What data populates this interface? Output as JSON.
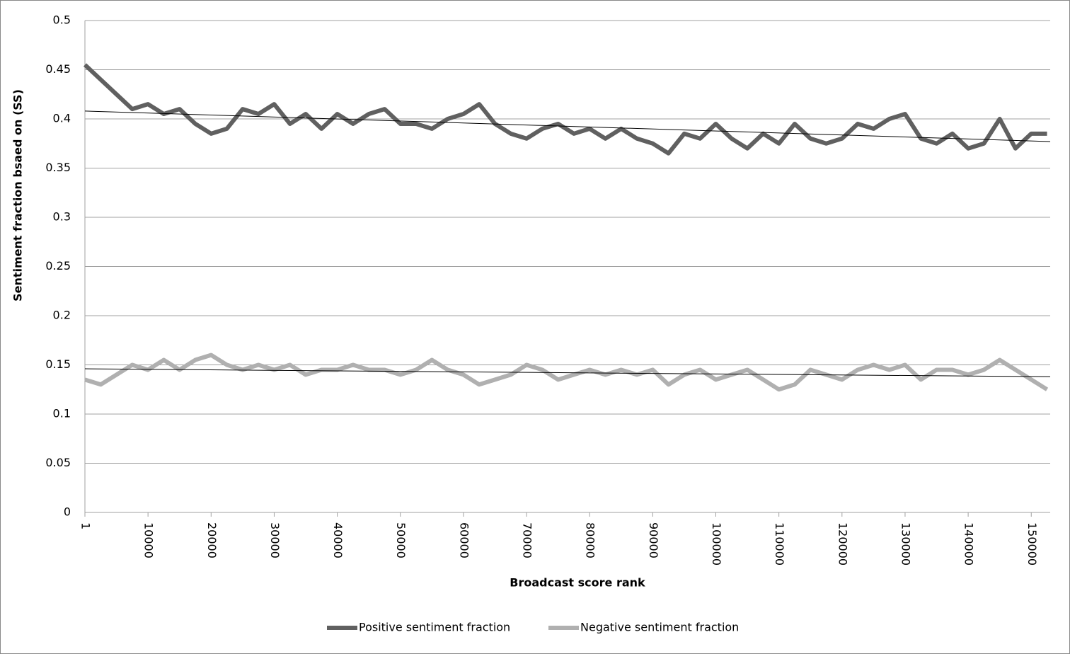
{
  "chart_data": {
    "type": "line",
    "y_label": "Sentiment fraction bsaed on (SS)",
    "x_label": "Broadcast score rank",
    "x": [
      1,
      2500,
      5000,
      7500,
      10000,
      12500,
      15000,
      17500,
      20000,
      22500,
      25000,
      27500,
      30000,
      32500,
      35000,
      37500,
      40000,
      42500,
      45000,
      47500,
      50000,
      52500,
      55000,
      57500,
      60000,
      62500,
      65000,
      67500,
      70000,
      72500,
      75000,
      77500,
      80000,
      82500,
      85000,
      87500,
      90000,
      92500,
      95000,
      97500,
      100000,
      102500,
      105000,
      107500,
      110000,
      112500,
      115000,
      117500,
      120000,
      122500,
      125000,
      127500,
      130000,
      132500,
      135000,
      137500,
      140000,
      142500,
      145000,
      147500,
      150000,
      152500
    ],
    "series": [
      {
        "name": "Positive sentiment fraction",
        "color": "#606060",
        "values": [
          0.455,
          0.44,
          0.425,
          0.41,
          0.415,
          0.405,
          0.41,
          0.395,
          0.385,
          0.39,
          0.41,
          0.405,
          0.415,
          0.395,
          0.405,
          0.39,
          0.405,
          0.395,
          0.405,
          0.41,
          0.395,
          0.395,
          0.39,
          0.4,
          0.405,
          0.415,
          0.395,
          0.385,
          0.38,
          0.39,
          0.395,
          0.385,
          0.39,
          0.38,
          0.39,
          0.38,
          0.375,
          0.365,
          0.385,
          0.38,
          0.395,
          0.38,
          0.37,
          0.385,
          0.375,
          0.395,
          0.38,
          0.375,
          0.38,
          0.395,
          0.39,
          0.4,
          0.405,
          0.38,
          0.375,
          0.385,
          0.37,
          0.375,
          0.4,
          0.37,
          0.385,
          0.385
        ]
      },
      {
        "name": "Negative sentiment fraction",
        "color": "#b0b0b0",
        "values": [
          0.135,
          0.13,
          0.14,
          0.15,
          0.145,
          0.155,
          0.145,
          0.155,
          0.16,
          0.15,
          0.145,
          0.15,
          0.145,
          0.15,
          0.14,
          0.145,
          0.145,
          0.15,
          0.145,
          0.145,
          0.14,
          0.145,
          0.155,
          0.145,
          0.14,
          0.13,
          0.135,
          0.14,
          0.15,
          0.145,
          0.135,
          0.14,
          0.145,
          0.14,
          0.145,
          0.14,
          0.145,
          0.13,
          0.14,
          0.145,
          0.135,
          0.14,
          0.145,
          0.135,
          0.125,
          0.13,
          0.145,
          0.14,
          0.135,
          0.145,
          0.15,
          0.145,
          0.15,
          0.135,
          0.145,
          0.145,
          0.14,
          0.145,
          0.155,
          0.145,
          0.135,
          0.125
        ]
      }
    ],
    "trendlines": [
      {
        "x": [
          1,
          153000
        ],
        "values": [
          0.408,
          0.377
        ],
        "color": "#000000"
      },
      {
        "x": [
          1,
          153000
        ],
        "values": [
          0.146,
          0.138
        ],
        "color": "#000000"
      }
    ],
    "xlim": [
      1,
      153000
    ],
    "ylim": [
      0,
      0.5
    ],
    "xticks": [
      1,
      10000,
      20000,
      30000,
      40000,
      50000,
      60000,
      70000,
      80000,
      90000,
      100000,
      110000,
      120000,
      130000,
      140000,
      150000
    ],
    "yticks": [
      0,
      0.05,
      0.1,
      0.15,
      0.2,
      0.25,
      0.3,
      0.35,
      0.4,
      0.45,
      0.5
    ],
    "grid": true,
    "legend": "bottom"
  }
}
